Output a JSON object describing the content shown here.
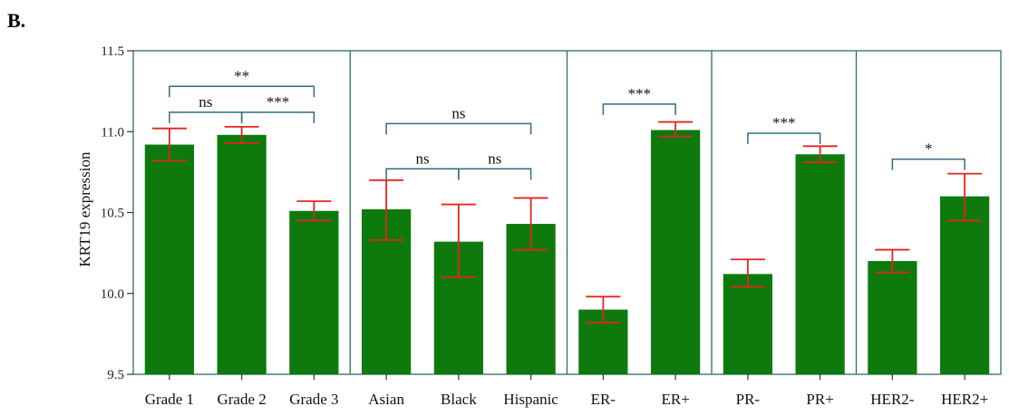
{
  "panel_label": "B.",
  "chart_data": {
    "type": "bar",
    "ylabel": "KRT19 expression",
    "xlabel": "",
    "ylim": [
      9.5,
      11.5
    ],
    "yticks": [
      9.5,
      10.0,
      10.5,
      11.0,
      11.5
    ],
    "ytick_labels": [
      "9.5",
      "10.0",
      "10.5",
      "11.0",
      "11.5"
    ],
    "grid": false,
    "colors": {
      "bar": "#0e7a0e",
      "error": "#e3261d",
      "bracket": "#2f6e7e",
      "frame": "#2f6e5e"
    },
    "categories": [
      "Grade 1",
      "Grade 2",
      "Grade 3",
      "Asian",
      "Black",
      "Hispanic",
      "ER-",
      "ER+",
      "PR-",
      "PR+",
      "HER2-",
      "HER2+"
    ],
    "values": [
      10.92,
      10.98,
      10.51,
      10.52,
      10.32,
      10.43,
      9.9,
      11.01,
      10.12,
      10.86,
      10.2,
      10.6
    ],
    "error_low": [
      10.82,
      10.93,
      10.45,
      10.33,
      10.1,
      10.27,
      9.82,
      10.97,
      10.04,
      10.81,
      10.13,
      10.45
    ],
    "error_high": [
      11.02,
      11.03,
      10.57,
      10.7,
      10.55,
      10.59,
      9.98,
      11.06,
      10.21,
      10.91,
      10.27,
      10.74
    ],
    "groups": [
      {
        "start": 0,
        "end": 2
      },
      {
        "start": 3,
        "end": 5
      },
      {
        "start": 6,
        "end": 7
      },
      {
        "start": 8,
        "end": 9
      },
      {
        "start": 10,
        "end": 11
      }
    ],
    "significance": [
      {
        "from": 0,
        "to": 2,
        "label": "**",
        "level": 11.28
      },
      {
        "from": 0,
        "to": 1,
        "label": "ns",
        "level": 11.12
      },
      {
        "from": 1,
        "to": 2,
        "label": "***",
        "level": 11.12
      },
      {
        "from": 3,
        "to": 5,
        "label": "ns",
        "level": 11.05
      },
      {
        "from": 3,
        "to": 4,
        "label": "ns",
        "level": 10.77
      },
      {
        "from": 4,
        "to": 5,
        "label": "ns",
        "level": 10.77
      },
      {
        "from": 6,
        "to": 7,
        "label": "***",
        "level": 11.17
      },
      {
        "from": 8,
        "to": 9,
        "label": "***",
        "level": 10.99
      },
      {
        "from": 10,
        "to": 11,
        "label": "*",
        "level": 10.83
      }
    ]
  }
}
